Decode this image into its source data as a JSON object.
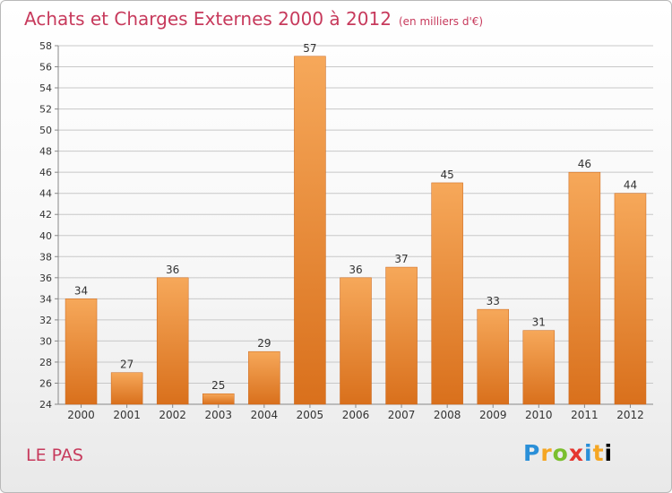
{
  "header": {
    "title": "Achats et Charges Externes 2000 à 2012",
    "unit": "(en milliers d'€)"
  },
  "footer": {
    "commune": "LE PAS",
    "logo_text": "Proxiti"
  },
  "colors": {
    "title": "#c73a5c",
    "bar_light": "#f6a85a",
    "bar_dark": "#d9701c",
    "grid": "#c8c8c8"
  },
  "chart_data": {
    "type": "bar",
    "categories": [
      "2000",
      "2001",
      "2002",
      "2003",
      "2004",
      "2005",
      "2006",
      "2007",
      "2008",
      "2009",
      "2010",
      "2011",
      "2012"
    ],
    "values": [
      34,
      27,
      36,
      25,
      29,
      57,
      36,
      37,
      45,
      33,
      31,
      46,
      44
    ],
    "ylim": [
      24,
      58
    ],
    "yticks": [
      24,
      26,
      28,
      30,
      32,
      34,
      36,
      38,
      40,
      42,
      44,
      46,
      48,
      50,
      52,
      54,
      56,
      58
    ],
    "grid": true,
    "data_labels": true
  }
}
